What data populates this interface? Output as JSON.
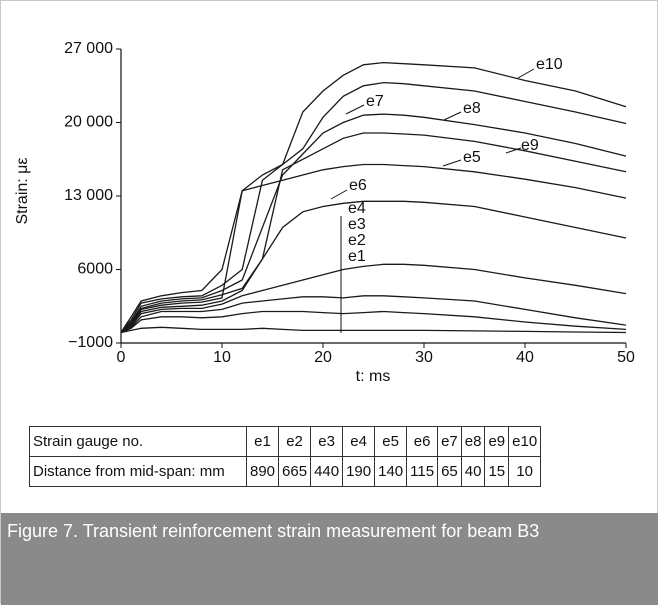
{
  "chart_data": {
    "type": "line",
    "xlabel": "t: ms",
    "ylabel": "Strain: με",
    "x": [
      0,
      1,
      2,
      4,
      6,
      8,
      10,
      12,
      14,
      16,
      18,
      20,
      22,
      24,
      26,
      28,
      30,
      35,
      40,
      45,
      50
    ],
    "xlim": [
      0,
      50
    ],
    "xticks": [
      0,
      10,
      20,
      30,
      40,
      50
    ],
    "ylim": [
      -1000,
      27000
    ],
    "yticks": [
      {
        "value": -1000,
        "label": "−1000"
      },
      6000,
      {
        "value": 13000,
        "label": "13 000"
      },
      {
        "value": 20000,
        "label": "20 000"
      },
      {
        "value": 27000,
        "label": "27 000"
      }
    ],
    "series": [
      {
        "name": "e10",
        "color": "#1a1a1a",
        "values": [
          0,
          1500,
          3000,
          3500,
          3800,
          4000,
          6000,
          13500,
          15000,
          16000,
          21000,
          23000,
          24500,
          25500,
          25700,
          25600,
          25500,
          25200,
          24000,
          23000,
          21500
        ]
      },
      {
        "name": "e7",
        "color": "#1a1a1a",
        "values": [
          0,
          1200,
          2800,
          3200,
          3400,
          3500,
          4500,
          6000,
          14500,
          16000,
          17500,
          20500,
          22500,
          23500,
          23800,
          23700,
          23500,
          23000,
          22000,
          21000,
          19900
        ]
      },
      {
        "name": "e8",
        "color": "#1a1a1a",
        "values": [
          0,
          1000,
          2500,
          3000,
          3200,
          3300,
          4000,
          5000,
          10000,
          15000,
          17000,
          19000,
          20000,
          20700,
          20800,
          20700,
          20500,
          19800,
          19000,
          18000,
          16800
        ]
      },
      {
        "name": "e9",
        "color": "#1a1a1a",
        "values": [
          0,
          900,
          2300,
          2800,
          3000,
          3100,
          3600,
          4200,
          7000,
          15500,
          16500,
          17500,
          18500,
          19000,
          19000,
          18900,
          18800,
          18200,
          17300,
          16300,
          15300
        ]
      },
      {
        "name": "e5",
        "color": "#1a1a1a",
        "values": [
          0,
          800,
          2200,
          2600,
          2800,
          2900,
          3300,
          13500,
          14000,
          14500,
          15000,
          15500,
          15800,
          16000,
          16000,
          15900,
          15800,
          15300,
          14600,
          13800,
          12800
        ]
      },
      {
        "name": "e6",
        "color": "#1a1a1a",
        "values": [
          0,
          700,
          2000,
          2400,
          2500,
          2600,
          3000,
          4000,
          7000,
          10000,
          11500,
          12000,
          12300,
          12500,
          12500,
          12500,
          12400,
          12000,
          11000,
          10000,
          9000
        ]
      },
      {
        "name": "e4",
        "color": "#1a1a1a",
        "values": [
          0,
          600,
          1800,
          2200,
          2300,
          2300,
          2700,
          3500,
          4000,
          4500,
          5000,
          5500,
          6000,
          6300,
          6500,
          6500,
          6400,
          6000,
          5200,
          4500,
          3700
        ]
      },
      {
        "name": "e3",
        "color": "#1a1a1a",
        "values": [
          0,
          500,
          1500,
          2000,
          2000,
          2000,
          2200,
          2800,
          3000,
          3200,
          3400,
          3400,
          3300,
          3500,
          3500,
          3400,
          3300,
          3000,
          2200,
          1400,
          700
        ]
      },
      {
        "name": "e2",
        "color": "#1a1a1a",
        "values": [
          0,
          400,
          1200,
          1500,
          1500,
          1400,
          1500,
          1800,
          2000,
          2000,
          2000,
          1900,
          1800,
          1900,
          2000,
          1900,
          1800,
          1500,
          1000,
          600,
          300
        ]
      },
      {
        "name": "e1",
        "color": "#1a1a1a",
        "values": [
          0,
          200,
          400,
          500,
          400,
          300,
          300,
          300,
          400,
          300,
          200,
          200,
          200,
          200,
          200,
          200,
          200,
          150,
          100,
          50,
          0
        ]
      }
    ]
  },
  "table": {
    "header": [
      "Strain gauge no.",
      "e1",
      "e2",
      "e3",
      "e4",
      "e5",
      "e6",
      "e7",
      "e8",
      "e9",
      "e10"
    ],
    "rows": [
      [
        "Distance from mid-span: mm",
        890,
        665,
        440,
        190,
        140,
        115,
        65,
        40,
        15,
        10
      ]
    ]
  },
  "caption": "Figure 7. Transient reinforcement strain measurement for beam B3"
}
